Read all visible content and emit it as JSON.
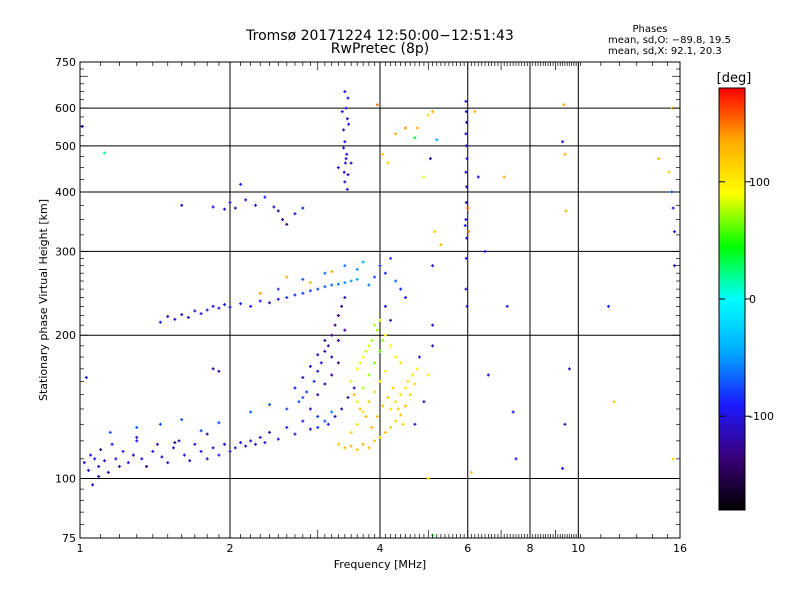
{
  "chart_data": {
    "type": "scatter",
    "title": "Tromsø 20171224 12:50:00−12:51:43",
    "subtitle": "RwPretec (8p)",
    "xlabel": "Frequency [MHz]",
    "ylabel": "Stationary phase Virtual Height [km]",
    "x_scale": "log",
    "y_scale": "log",
    "xlim": [
      1,
      16
    ],
    "ylim": [
      75,
      750
    ],
    "x_ticks": [
      1,
      2,
      4,
      6,
      8,
      10,
      16
    ],
    "y_ticks": [
      75,
      100,
      200,
      300,
      400,
      500,
      600,
      750
    ],
    "grid": true,
    "phase_box": {
      "heading": "Phases",
      "line1": "mean, sd,O: −89.8, 19.5",
      "line2": "mean, sd,X:  92.1, 20.3"
    },
    "colorbar": {
      "label": "[deg]",
      "range": [
        -180,
        180
      ],
      "ticks": [
        100,
        0,
        -100
      ],
      "colors": [
        "#000000",
        "#3a007a",
        "#1a1aff",
        "#00aaff",
        "#00ffff",
        "#00ff00",
        "#ffff00",
        "#ffaa00",
        "#ff0000"
      ]
    },
    "points": [
      [
        1.02,
        108,
        -110
      ],
      [
        1.04,
        104,
        -105
      ],
      [
        1.05,
        112,
        -95
      ],
      [
        1.07,
        110,
        -88
      ],
      [
        1.09,
        106,
        -100
      ],
      [
        1.1,
        115,
        -120
      ],
      [
        1.12,
        109,
        -105
      ],
      [
        1.14,
        103,
        -115
      ],
      [
        1.16,
        118,
        -92
      ],
      [
        1.18,
        110,
        -108
      ],
      [
        1.2,
        106,
        -110
      ],
      [
        1.22,
        114,
        -95
      ],
      [
        1.25,
        108,
        -104
      ],
      [
        1.28,
        112,
        -116
      ],
      [
        1.3,
        120,
        -90
      ],
      [
        1.33,
        110,
        -100
      ],
      [
        1.36,
        106,
        -125
      ],
      [
        1.4,
        114,
        -98
      ],
      [
        1.43,
        118,
        -104
      ],
      [
        1.46,
        111,
        -112
      ],
      [
        1.5,
        108,
        -100
      ],
      [
        1.54,
        116,
        -96
      ],
      [
        1.58,
        120,
        -110
      ],
      [
        1.62,
        112,
        -102
      ],
      [
        1.66,
        109,
        -108
      ],
      [
        1.7,
        118,
        -95
      ],
      [
        1.75,
        114,
        -100
      ],
      [
        1.8,
        110,
        -106
      ],
      [
        1.85,
        116,
        -112
      ],
      [
        1.9,
        112,
        -98
      ],
      [
        1.95,
        118,
        -104
      ],
      [
        2.0,
        114,
        -100
      ],
      [
        2.05,
        116,
        -96
      ],
      [
        2.1,
        119,
        -102
      ],
      [
        2.15,
        117,
        -108
      ],
      [
        2.2,
        120,
        -100
      ],
      [
        2.25,
        118,
        -94
      ],
      [
        2.3,
        122,
        -104
      ],
      [
        2.35,
        119,
        -110
      ],
      [
        2.4,
        125,
        -98
      ],
      [
        2.5,
        121,
        -100
      ],
      [
        2.6,
        128,
        -88
      ],
      [
        2.7,
        124,
        -105
      ],
      [
        2.8,
        132,
        -92
      ],
      [
        2.9,
        127,
        -98
      ],
      [
        3.0,
        135,
        -80
      ],
      [
        1.15,
        125,
        -75
      ],
      [
        1.3,
        128,
        -70
      ],
      [
        1.45,
        130,
        -78
      ],
      [
        1.6,
        133,
        -72
      ],
      [
        1.75,
        126,
        -80
      ],
      [
        1.9,
        131,
        -74
      ],
      [
        2.2,
        138,
        -68
      ],
      [
        2.4,
        143,
        -72
      ],
      [
        2.6,
        140,
        -76
      ],
      [
        2.8,
        148,
        -70
      ],
      [
        1.3,
        122,
        -120
      ],
      [
        1.55,
        119,
        -130
      ],
      [
        1.8,
        124,
        -125
      ],
      [
        1.06,
        97,
        -110
      ],
      [
        1.09,
        101,
        -105
      ],
      [
        1.03,
        163,
        -90
      ],
      [
        1.01,
        549,
        -115
      ],
      [
        1.12,
        483,
        20
      ],
      [
        1.45,
        213,
        -95
      ],
      [
        1.5,
        219,
        -105
      ],
      [
        1.55,
        216,
        -110
      ],
      [
        1.6,
        221,
        -100
      ],
      [
        1.65,
        218,
        -108
      ],
      [
        1.7,
        225,
        -96
      ],
      [
        1.75,
        222,
        -104
      ],
      [
        1.8,
        226,
        -98
      ],
      [
        1.85,
        230,
        -102
      ],
      [
        1.9,
        228,
        -100
      ],
      [
        1.95,
        232,
        -96
      ],
      [
        2.0,
        229,
        -104
      ],
      [
        2.1,
        233,
        -92
      ],
      [
        2.2,
        230,
        -98
      ],
      [
        2.3,
        236,
        -88
      ],
      [
        2.4,
        234,
        -95
      ],
      [
        2.5,
        238,
        -90
      ],
      [
        2.6,
        240,
        -82
      ],
      [
        2.7,
        243,
        -86
      ],
      [
        2.8,
        245,
        -80
      ],
      [
        2.9,
        248,
        -76
      ],
      [
        3.0,
        250,
        -72
      ],
      [
        3.1,
        253,
        -70
      ],
      [
        3.2,
        255,
        -65
      ],
      [
        3.3,
        256,
        -60
      ],
      [
        3.4,
        258,
        -55
      ],
      [
        3.5,
        260,
        -50
      ],
      [
        3.6,
        262,
        -45
      ],
      [
        2.5,
        250,
        -75
      ],
      [
        2.8,
        262,
        -70
      ],
      [
        3.1,
        270,
        -65
      ],
      [
        3.4,
        280,
        -60
      ],
      [
        3.6,
        275,
        -55
      ],
      [
        3.7,
        285,
        -40
      ],
      [
        2.3,
        245,
        140
      ],
      [
        2.6,
        265,
        130
      ],
      [
        2.9,
        258,
        120
      ],
      [
        3.2,
        272,
        135
      ],
      [
        1.85,
        372,
        -100
      ],
      [
        1.95,
        368,
        -110
      ],
      [
        2.0,
        380,
        -105
      ],
      [
        2.05,
        370,
        -115
      ],
      [
        2.15,
        385,
        -100
      ],
      [
        2.25,
        375,
        -108
      ],
      [
        2.35,
        390,
        -95
      ],
      [
        2.45,
        372,
        -110
      ],
      [
        2.5,
        365,
        -120
      ],
      [
        2.55,
        350,
        -130
      ],
      [
        2.6,
        342,
        -140
      ],
      [
        2.7,
        360,
        -100
      ],
      [
        2.8,
        370,
        -90
      ],
      [
        2.1,
        415,
        -95
      ],
      [
        1.6,
        375,
        -105
      ],
      [
        3.4,
        650,
        -105
      ],
      [
        3.45,
        630,
        -100
      ],
      [
        3.42,
        600,
        -110
      ],
      [
        3.44,
        570,
        -108
      ],
      [
        3.38,
        540,
        -112
      ],
      [
        3.4,
        510,
        -104
      ],
      [
        3.43,
        480,
        -100
      ],
      [
        3.41,
        460,
        -106
      ],
      [
        3.39,
        440,
        -112
      ],
      [
        3.4,
        420,
        -118
      ],
      [
        3.44,
        405,
        -102
      ],
      [
        3.36,
        590,
        -95
      ],
      [
        3.46,
        555,
        -100
      ],
      [
        3.38,
        495,
        -110
      ],
      [
        3.42,
        470,
        -104
      ],
      [
        3.45,
        435,
        -112
      ],
      [
        3.3,
        450,
        -108
      ],
      [
        3.5,
        460,
        -110
      ],
      [
        2.75,
        145,
        -75
      ],
      [
        2.85,
        152,
        -80
      ],
      [
        2.95,
        160,
        -85
      ],
      [
        3.0,
        168,
        -100
      ],
      [
        3.05,
        175,
        -110
      ],
      [
        3.1,
        185,
        -120
      ],
      [
        3.15,
        190,
        -125
      ],
      [
        3.2,
        200,
        -130
      ],
      [
        3.25,
        210,
        -135
      ],
      [
        3.3,
        220,
        -130
      ],
      [
        3.35,
        230,
        -125
      ],
      [
        3.4,
        240,
        -120
      ],
      [
        2.9,
        140,
        -110
      ],
      [
        3.0,
        150,
        -120
      ],
      [
        3.1,
        158,
        -125
      ],
      [
        3.2,
        165,
        -130
      ],
      [
        3.3,
        175,
        -132
      ],
      [
        2.7,
        155,
        -100
      ],
      [
        2.8,
        163,
        -110
      ],
      [
        2.9,
        172,
        -115
      ],
      [
        3.0,
        182,
        -118
      ],
      [
        3.1,
        195,
        -122
      ],
      [
        3.2,
        180,
        -120
      ],
      [
        3.3,
        195,
        -125
      ],
      [
        3.4,
        205,
        -128
      ],
      [
        3.15,
        130,
        -105
      ],
      [
        3.25,
        135,
        -110
      ],
      [
        3.35,
        140,
        -115
      ],
      [
        3.45,
        148,
        -120
      ],
      [
        3.55,
        155,
        -118
      ],
      [
        3.0,
        128,
        -80
      ],
      [
        3.1,
        132,
        -70
      ],
      [
        3.2,
        138,
        -60
      ],
      [
        1.85,
        170,
        -130
      ],
      [
        1.9,
        168,
        -125
      ],
      [
        3.3,
        118,
        120
      ],
      [
        3.4,
        116,
        125
      ],
      [
        3.5,
        117,
        130
      ],
      [
        3.6,
        115,
        120
      ],
      [
        3.7,
        118,
        128
      ],
      [
        3.8,
        116,
        125
      ],
      [
        3.9,
        120,
        122
      ],
      [
        4.0,
        122,
        118
      ],
      [
        4.1,
        125,
        120
      ],
      [
        4.2,
        128,
        115
      ],
      [
        4.3,
        132,
        112
      ],
      [
        4.4,
        136,
        118
      ],
      [
        4.5,
        142,
        120
      ],
      [
        4.6,
        150,
        115
      ],
      [
        4.7,
        158,
        108
      ],
      [
        3.5,
        125,
        110
      ],
      [
        3.6,
        130,
        105
      ],
      [
        3.7,
        138,
        108
      ],
      [
        3.8,
        145,
        112
      ],
      [
        3.9,
        152,
        110
      ],
      [
        4.0,
        160,
        105
      ],
      [
        4.1,
        168,
        100
      ],
      [
        3.6,
        145,
        80
      ],
      [
        3.7,
        155,
        75
      ],
      [
        3.8,
        165,
        70
      ],
      [
        3.9,
        175,
        65
      ],
      [
        4.0,
        185,
        60
      ],
      [
        3.65,
        175,
        85
      ],
      [
        3.75,
        185,
        80
      ],
      [
        3.85,
        195,
        75
      ],
      [
        3.95,
        205,
        70
      ],
      [
        4.05,
        195,
        68
      ],
      [
        3.5,
        160,
        95
      ],
      [
        3.6,
        170,
        90
      ],
      [
        3.7,
        180,
        88
      ],
      [
        3.8,
        190,
        85
      ],
      [
        4.2,
        140,
        110
      ],
      [
        4.3,
        145,
        108
      ],
      [
        4.4,
        150,
        105
      ],
      [
        4.5,
        155,
        102
      ],
      [
        3.55,
        150,
        130
      ],
      [
        3.65,
        140,
        125
      ],
      [
        3.75,
        135,
        128
      ],
      [
        3.85,
        128,
        130
      ],
      [
        3.95,
        135,
        125
      ],
      [
        4.05,
        142,
        122
      ],
      [
        4.15,
        148,
        118
      ],
      [
        4.25,
        155,
        115
      ],
      [
        4.35,
        140,
        120
      ],
      [
        4.45,
        130,
        118
      ],
      [
        4.55,
        160,
        110
      ],
      [
        4.65,
        165,
        105
      ],
      [
        4.75,
        170,
        100
      ],
      [
        3.9,
        210,
        75
      ],
      [
        4.0,
        215,
        80
      ],
      [
        4.1,
        200,
        90
      ],
      [
        4.2,
        190,
        95
      ],
      [
        4.3,
        180,
        98
      ],
      [
        4.4,
        175,
        102
      ],
      [
        3.8,
        255,
        -60
      ],
      [
        3.9,
        265,
        -70
      ],
      [
        4.0,
        280,
        -80
      ],
      [
        4.1,
        270,
        -90
      ],
      [
        4.2,
        290,
        -75
      ],
      [
        4.3,
        260,
        -65
      ],
      [
        4.4,
        250,
        -85
      ],
      [
        4.5,
        240,
        -95
      ],
      [
        4.1,
        230,
        -100
      ],
      [
        4.2,
        215,
        -105
      ],
      [
        3.95,
        610,
        150
      ],
      [
        4.05,
        480,
        120
      ],
      [
        4.15,
        460,
        110
      ],
      [
        4.3,
        530,
        130
      ],
      [
        4.5,
        545,
        140
      ],
      [
        4.75,
        545,
        135
      ],
      [
        4.7,
        520,
        40
      ],
      [
        5.1,
        590,
        130
      ],
      [
        5.2,
        515,
        -40
      ],
      [
        5.0,
        580,
        110
      ],
      [
        4.9,
        430,
        100
      ],
      [
        5.05,
        470,
        -120
      ],
      [
        5.15,
        330,
        115
      ],
      [
        5.1,
        280,
        -110
      ],
      [
        5.1,
        210,
        -100
      ],
      [
        5.1,
        190,
        -120
      ],
      [
        5.3,
        310,
        130
      ],
      [
        4.7,
        130,
        -100
      ],
      [
        4.9,
        145,
        -115
      ],
      [
        5.0,
        165,
        100
      ],
      [
        4.8,
        180,
        -100
      ],
      [
        5.0,
        100,
        110
      ],
      [
        5.1,
        76,
        40
      ],
      [
        5.95,
        620,
        -110
      ],
      [
        5.96,
        590,
        -115
      ],
      [
        5.97,
        560,
        -120
      ],
      [
        5.95,
        530,
        -105
      ],
      [
        5.96,
        500,
        -110
      ],
      [
        5.98,
        470,
        -100
      ],
      [
        5.95,
        440,
        -108
      ],
      [
        5.97,
        410,
        -115
      ],
      [
        5.96,
        380,
        -120
      ],
      [
        5.95,
        350,
        -104
      ],
      [
        5.97,
        320,
        -110
      ],
      [
        5.96,
        290,
        -100
      ],
      [
        5.95,
        250,
        -106
      ],
      [
        5.98,
        230,
        -112
      ],
      [
        6.0,
        370,
        160
      ],
      [
        6.02,
        330,
        150
      ],
      [
        5.93,
        340,
        -100
      ],
      [
        6.2,
        590,
        130
      ],
      [
        6.3,
        430,
        -100
      ],
      [
        6.5,
        300,
        -90
      ],
      [
        6.1,
        103,
        120
      ],
      [
        6.6,
        165,
        -110
      ],
      [
        7.1,
        430,
        130
      ],
      [
        7.2,
        230,
        -90
      ],
      [
        7.4,
        138,
        -100
      ],
      [
        7.5,
        110,
        -95
      ],
      [
        9.35,
        610,
        130
      ],
      [
        9.3,
        510,
        -100
      ],
      [
        9.4,
        480,
        130
      ],
      [
        9.45,
        365,
        130
      ],
      [
        9.4,
        130,
        -110
      ],
      [
        9.3,
        105,
        -100
      ],
      [
        9.6,
        170,
        -110
      ],
      [
        11.5,
        230,
        -90
      ],
      [
        11.8,
        145,
        120
      ],
      [
        14.5,
        470,
        130
      ],
      [
        15.2,
        440,
        120
      ],
      [
        15.4,
        400,
        -70
      ],
      [
        15.5,
        370,
        -110
      ],
      [
        15.6,
        330,
        -100
      ],
      [
        15.6,
        280,
        -115
      ],
      [
        15.45,
        600,
        125
      ],
      [
        15.5,
        110,
        110
      ]
    ]
  }
}
